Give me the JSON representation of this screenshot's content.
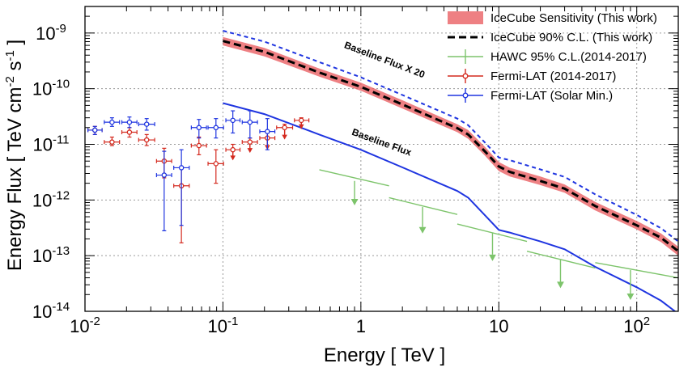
{
  "chart_data": {
    "type": "line",
    "xlabel": "Energy [ TeV ]",
    "ylabel_main": "Energy Flux [ TeV cm",
    "ylabel_exp1": "-2",
    "ylabel_mid": " s",
    "ylabel_exp2": "-1",
    "ylabel_end": " ]",
    "x_scale": "log",
    "y_scale": "log",
    "xlim": [
      0.01,
      200
    ],
    "ylim": [
      1e-14,
      3e-09
    ],
    "grid": true,
    "legend_position": "top-right",
    "x_tick_labels": [
      {
        "value": 0.01,
        "base": "10",
        "exp": "-2"
      },
      {
        "value": 0.1,
        "base": "10",
        "exp": "-1"
      },
      {
        "value": 1,
        "base": "1",
        "exp": ""
      },
      {
        "value": 10,
        "base": "10",
        "exp": ""
      },
      {
        "value": 100,
        "base": "10",
        "exp": "2"
      }
    ],
    "y_tick_labels": [
      {
        "value": 1e-09,
        "base": "10",
        "exp": "-9"
      },
      {
        "value": 1e-10,
        "base": "10",
        "exp": "-10"
      },
      {
        "value": 1e-11,
        "base": "10",
        "exp": "-11"
      },
      {
        "value": 1e-12,
        "base": "10",
        "exp": "-12"
      },
      {
        "value": 1e-13,
        "base": "10",
        "exp": "-13"
      },
      {
        "value": 1e-14,
        "base": "10",
        "exp": "-14"
      }
    ],
    "annotations": [
      {
        "text": "Baseline Flux X 20",
        "x": 0.75,
        "y": 5.5e-10,
        "angle": 21
      },
      {
        "text": "Baseline Flux",
        "x": 0.85,
        "y": 1.5e-11,
        "angle": 20
      }
    ],
    "series": [
      {
        "name": "IceCube Sensitivity (This work)",
        "kind": "band",
        "color": "#e8555a",
        "x": [
          0.1,
          0.2,
          0.5,
          1,
          2,
          5,
          6,
          8,
          10,
          12,
          20,
          30,
          50,
          100,
          150,
          200
        ],
        "upper": [
          8.5e-10,
          5.4e-10,
          2.3e-10,
          1.28e-10,
          6.2e-11,
          2.3e-11,
          1.8e-11,
          8.8e-12,
          4.8e-12,
          3.8e-12,
          2.65e-12,
          1.9e-12,
          9.2e-13,
          4.2e-13,
          2.5e-13,
          1.45e-13
        ],
        "lower": [
          6e-10,
          3.8e-10,
          1.65e-10,
          9.2e-11,
          4.4e-11,
          1.65e-11,
          1.25e-11,
          6.1e-12,
          3.3e-12,
          2.65e-12,
          1.85e-12,
          1.35e-12,
          6.5e-13,
          2.95e-13,
          1.75e-13,
          1e-13
        ]
      },
      {
        "name": "IceCube 90% C.L. (This work)",
        "kind": "line",
        "color": "#000000",
        "dash": "9,5",
        "x": [
          0.1,
          0.2,
          0.5,
          1,
          2,
          5,
          6,
          8,
          10,
          12,
          20,
          30,
          50,
          100,
          150,
          200
        ],
        "y": [
          7.2e-10,
          4.6e-10,
          1.95e-10,
          1.08e-10,
          5.2e-11,
          1.95e-11,
          1.5e-11,
          7.3e-12,
          4e-12,
          3.2e-12,
          2.2e-12,
          1.6e-12,
          7.8e-13,
          3.5e-13,
          2.1e-13,
          1.2e-13
        ]
      },
      {
        "name": "Baseline Flux X 20",
        "kind": "line",
        "color": "#1f35e0",
        "dash": "5,4",
        "x": [
          0.1,
          0.2,
          0.5,
          1,
          2,
          5,
          6,
          8,
          10,
          12,
          20,
          30,
          50,
          100,
          150,
          200
        ],
        "y": [
          1.1e-09,
          7e-10,
          3e-10,
          1.6e-10,
          7.7e-11,
          2.9e-11,
          2.2e-11,
          1.05e-11,
          5.8e-12,
          5.2e-12,
          3.55e-12,
          2.6e-12,
          1.26e-12,
          5.4e-13,
          3.1e-13,
          1.8e-13
        ]
      },
      {
        "name": "Baseline Flux",
        "kind": "line",
        "color": "#1f35e0",
        "x": [
          0.1,
          0.2,
          0.5,
          1,
          2,
          5,
          6,
          8,
          10,
          12,
          20,
          30,
          50,
          100,
          150,
          200
        ],
        "y": [
          5.5e-11,
          3.5e-11,
          1.5e-11,
          8e-12,
          3.85e-12,
          1.45e-12,
          1.1e-12,
          5.2e-13,
          2.9e-13,
          2.6e-13,
          1.8e-13,
          1.3e-13,
          6.3e-14,
          2.7e-14,
          1.55e-14,
          9e-15
        ]
      },
      {
        "name": "HAWC 95% C.L.(2014-2017)",
        "kind": "upper_limit_segments",
        "color": "#7dc46b",
        "segments": [
          {
            "x0": 0.5,
            "x1": 1.6,
            "y0": 3.5e-12,
            "y1": 1.8e-12,
            "arrow_x": 0.9,
            "arrow_y_top": 2.2e-12,
            "arrow_y_bottom": 8e-13
          },
          {
            "x0": 1.6,
            "x1": 5.0,
            "y0": 1.1e-12,
            "y1": 5.5e-13,
            "arrow_x": 2.8,
            "arrow_y_top": 7.5e-13,
            "arrow_y_bottom": 2.5e-13
          },
          {
            "x0": 5.0,
            "x1": 16,
            "y0": 3.7e-13,
            "y1": 1.8e-13,
            "arrow_x": 9.0,
            "arrow_y_top": 2.6e-13,
            "arrow_y_bottom": 8e-14
          },
          {
            "x0": 16,
            "x1": 50,
            "y0": 1.2e-13,
            "y1": 6e-14,
            "arrow_x": 28,
            "arrow_y_top": 8.5e-14,
            "arrow_y_bottom": 2.6e-14
          },
          {
            "x0": 50,
            "x1": 200,
            "y0": 7.5e-14,
            "y1": 4e-14,
            "arrow_x": 90,
            "arrow_y_top": 5.5e-14,
            "arrow_y_bottom": 1.6e-14
          }
        ]
      },
      {
        "name": "Fermi-LAT (2014-2017)",
        "kind": "points",
        "color": "#d42a1f",
        "points": [
          {
            "x": 0.0118,
            "y": 1.8e-11,
            "ylo": 1.5e-11,
            "yhi": 2.1e-11,
            "xlo": 0.0105,
            "xhi": 0.0133
          },
          {
            "x": 0.0157,
            "y": 1.1e-11,
            "ylo": 9.5e-12,
            "yhi": 1.35e-11,
            "xlo": 0.0138,
            "xhi": 0.0178
          },
          {
            "x": 0.021,
            "y": 1.65e-11,
            "ylo": 1.35e-11,
            "yhi": 2e-11,
            "xlo": 0.0185,
            "xhi": 0.0238
          },
          {
            "x": 0.028,
            "y": 1.2e-11,
            "ylo": 9.5e-12,
            "yhi": 1.5e-11,
            "xlo": 0.0245,
            "xhi": 0.032
          },
          {
            "x": 0.0375,
            "y": 5e-12,
            "ylo": 2.5e-12,
            "yhi": 8.5e-12,
            "xlo": 0.033,
            "xhi": 0.0425
          },
          {
            "x": 0.05,
            "y": 1.8e-12,
            "ylo": 1.7e-13,
            "yhi": 3.8e-12,
            "xlo": 0.044,
            "xhi": 0.057
          },
          {
            "x": 0.067,
            "y": 9.5e-12,
            "ylo": 6.5e-12,
            "yhi": 1.35e-11,
            "xlo": 0.059,
            "xhi": 0.076
          },
          {
            "x": 0.089,
            "y": 4.5e-12,
            "ylo": 2e-12,
            "yhi": 8e-12,
            "xlo": 0.078,
            "xhi": 0.101
          },
          {
            "x": 0.118,
            "y": 8e-12,
            "ylo": 5.5e-12,
            "yhi": 1e-11,
            "xlo": 0.105,
            "xhi": 0.133,
            "ul": true
          },
          {
            "x": 0.157,
            "y": 1.1e-11,
            "ylo": 7.5e-12,
            "yhi": 1.3e-11,
            "xlo": 0.138,
            "xhi": 0.178,
            "ul": true
          },
          {
            "x": 0.21,
            "y": 1.3e-11,
            "ylo": 8.5e-12,
            "yhi": 1.6e-11,
            "xlo": 0.185,
            "xhi": 0.238,
            "ul": true
          },
          {
            "x": 0.28,
            "y": 2e-11,
            "ylo": 1.3e-11,
            "yhi": 2.3e-11,
            "xlo": 0.245,
            "xhi": 0.32,
            "ul": true
          },
          {
            "x": 0.37,
            "y": 2.7e-11,
            "ylo": 2e-11,
            "yhi": 3e-11,
            "xlo": 0.33,
            "xhi": 0.42,
            "ul": true
          }
        ]
      },
      {
        "name": "Fermi-LAT (Solar Min.)",
        "kind": "points",
        "color": "#1f35e0",
        "points": [
          {
            "x": 0.0118,
            "y": 1.8e-11,
            "ylo": 1.5e-11,
            "yhi": 2.1e-11,
            "xlo": 0.0105,
            "xhi": 0.0133
          },
          {
            "x": 0.0157,
            "y": 2.5e-11,
            "ylo": 2.1e-11,
            "yhi": 3e-11,
            "xlo": 0.0138,
            "xhi": 0.0178
          },
          {
            "x": 0.021,
            "y": 2.5e-11,
            "ylo": 2e-11,
            "yhi": 3.1e-11,
            "xlo": 0.0185,
            "xhi": 0.0238
          },
          {
            "x": 0.028,
            "y": 2.3e-11,
            "ylo": 1.8e-11,
            "yhi": 2.9e-11,
            "xlo": 0.0245,
            "xhi": 0.032
          },
          {
            "x": 0.0375,
            "y": 2.8e-12,
            "ylo": 2.8e-13,
            "yhi": 7.5e-12,
            "xlo": 0.033,
            "xhi": 0.0425
          },
          {
            "x": 0.05,
            "y": 3.8e-12,
            "ylo": 3.5e-13,
            "yhi": 8e-12,
            "xlo": 0.044,
            "xhi": 0.057
          },
          {
            "x": 0.067,
            "y": 2e-11,
            "ylo": 1.3e-11,
            "yhi": 2.8e-11,
            "xlo": 0.059,
            "xhi": 0.076
          },
          {
            "x": 0.089,
            "y": 2e-11,
            "ylo": 1.3e-11,
            "yhi": 2.9e-11,
            "xlo": 0.078,
            "xhi": 0.101
          },
          {
            "x": 0.118,
            "y": 2.7e-11,
            "ylo": 1.6e-11,
            "yhi": 4e-11,
            "xlo": 0.105,
            "xhi": 0.133
          },
          {
            "x": 0.157,
            "y": 2.5e-11,
            "ylo": 1.3e-11,
            "yhi": 4e-11,
            "xlo": 0.138,
            "xhi": 0.178
          },
          {
            "x": 0.21,
            "y": 1.7e-11,
            "ylo": 8e-12,
            "yhi": 2.9e-11,
            "xlo": 0.185,
            "xhi": 0.238
          }
        ]
      }
    ]
  }
}
